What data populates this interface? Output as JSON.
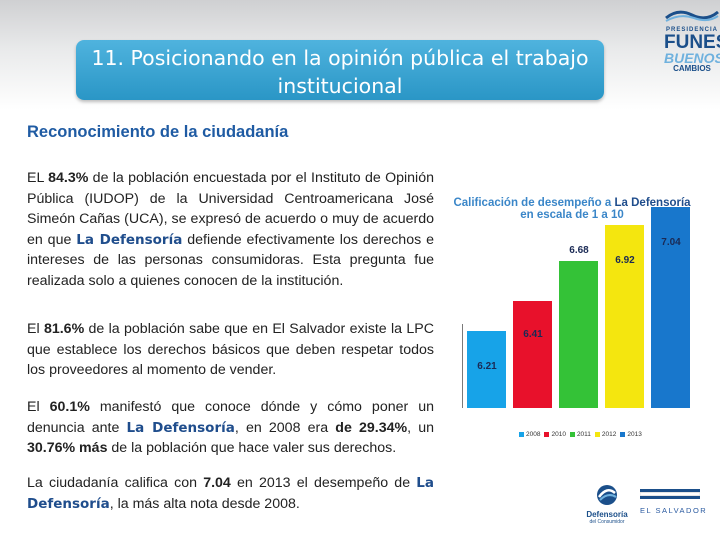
{
  "header": {
    "title": "11. Posicionando en la opinión pública el trabajo institucional",
    "logo_lines": [
      "PRESIDENCIA",
      "FUNES",
      "BUENOS",
      "CAMBIOS"
    ]
  },
  "subheading": "Reconocimiento de la ciudadanía",
  "paragraphs": {
    "p1": {
      "t1": "EL ",
      "b1": "84.3%",
      "t2": " de la población encuestada por el Instituto de Opinión Pública (IUDOP) de la Universidad Centroamericana José Simeón Cañas (UCA), se expresó de acuerdo o muy de acuerdo en que ",
      "brand": "La Defensoría",
      "t3": " defiende efectivamente los derechos e intereses de las personas consumidoras. Esta pregunta fue realizada solo a quienes conocen de la institución."
    },
    "p2": {
      "t1": "El ",
      "b1": "81.6%",
      "t2": " de la población sabe que en El Salvador existe la LPC que establece los derechos básicos que deben respetar todos los proveedores al momento de vender."
    },
    "p3": {
      "t1": "El ",
      "b1": "60.1%",
      "t2": " manifestó que conoce dónde y cómo poner un denuncia ante ",
      "brand": "La Defensoría",
      "t3": ", en 2008 era ",
      "b2": "de 29.34%",
      "t4": ", un ",
      "b3": "30.76% más",
      "t5": " de la población que hace valer sus derechos."
    },
    "p4": {
      "t1": "La ciudadanía califica con ",
      "b1": "7.04",
      "t2": " en 2013 el desempeño de ",
      "brand": "La Defensoría",
      "t3": ", la más alta nota desde 2008."
    }
  },
  "chart_data": {
    "type": "bar",
    "title_part1": "Calificación de desempeño a ",
    "title_brand": "La Defensoría",
    "title_part2": "en escala de 1 a 10",
    "categories": [
      "2008",
      "2010",
      "2011",
      "2012",
      "2013"
    ],
    "values": [
      6.21,
      6.41,
      6.68,
      6.92,
      7.04
    ],
    "value_labels": [
      "6.21",
      "6.41",
      "6.68",
      "6.92",
      "7.04"
    ],
    "colors": [
      "#17a3e8",
      "#e8112b",
      "#34c237",
      "#f4e60f",
      "#1877cc"
    ]
  },
  "footer": {
    "defensoria_logo": [
      "Defensoría",
      "del Consumidor"
    ],
    "country_logo": "EL SALVADOR"
  }
}
